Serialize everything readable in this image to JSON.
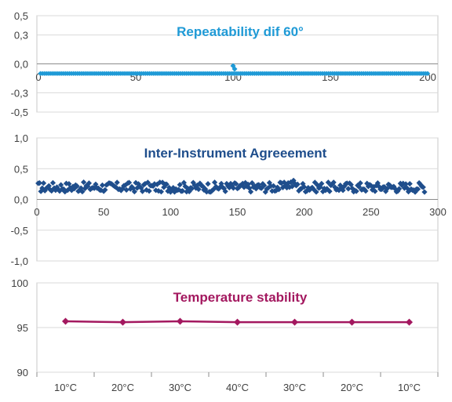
{
  "chart_data": [
    {
      "type": "scatter",
      "title": "Repeatability dif 60°",
      "title_color": "#1f9ad6",
      "marker_color": "#1f9ad6",
      "marker": "diamond",
      "xlim": [
        0,
        200
      ],
      "ylim": [
        -0.5,
        0.5
      ],
      "x_ticks": [
        "0",
        "50",
        "100",
        "150",
        "200"
      ],
      "y_ticks": [
        "0,5",
        "0,3",
        "0,0",
        "-0,3",
        "-0,5"
      ],
      "y_tick_values": [
        0.5,
        0.3,
        0.0,
        -0.3,
        -0.5
      ],
      "series": [
        {
          "x_start": 1,
          "x_end": 200,
          "y": -0.1,
          "spike": [
            {
              "x": 100,
              "y": -0.02
            }
          ]
        }
      ],
      "grid": true,
      "legend": "none"
    },
    {
      "type": "scatter",
      "title": "Inter-Instrument Agreeement",
      "title_color": "#1f4e8c",
      "marker_color": "#1f4e8c",
      "marker": "diamond",
      "xlim": [
        0,
        300
      ],
      "ylim": [
        -1.0,
        1.0
      ],
      "x_ticks": [
        "0",
        "50",
        "100",
        "150",
        "200",
        "250",
        "300"
      ],
      "y_ticks": [
        "1,0",
        "0,5",
        "0,0",
        "-0,5",
        "-1,0"
      ],
      "y_tick_values": [
        1.0,
        0.5,
        0.0,
        -0.5,
        -1.0
      ],
      "series": [
        {
          "x_start": 1,
          "x_end": 290,
          "y_range": [
            0.12,
            0.32
          ],
          "y_mean": 0.2
        }
      ],
      "grid": true,
      "legend": "none"
    },
    {
      "type": "line",
      "title": "Temperature stability",
      "title_color": "#a3185f",
      "line_color": "#a3185f",
      "marker": "diamond",
      "categories": [
        "10°C",
        "20°C",
        "30°C",
        "40°C",
        "30°C",
        "20°C",
        "10°C"
      ],
      "values": [
        95.7,
        95.6,
        95.7,
        95.6,
        95.6,
        95.6,
        95.6
      ],
      "ylim": [
        90,
        100
      ],
      "y_ticks": [
        "100",
        "95",
        "90"
      ],
      "y_tick_values": [
        100,
        95,
        90
      ],
      "grid": true,
      "legend": "none"
    }
  ]
}
